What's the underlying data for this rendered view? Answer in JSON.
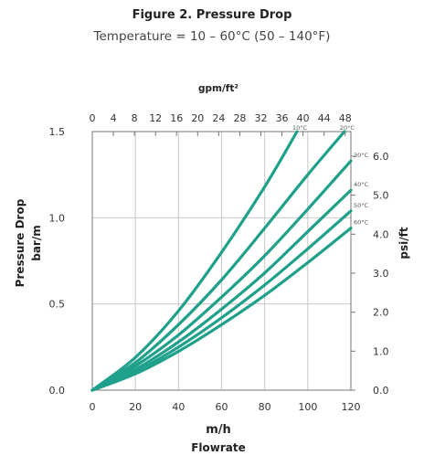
{
  "title": "Figure 2. Pressure Drop",
  "subtitle": "Temperature = 10 – 60°C (50 – 140°F)",
  "chart_data": {
    "type": "line",
    "xlabel": "m/h",
    "xlabel_secondary": "Flowrate",
    "x_top_label": "gpm/ft²",
    "ylabel": "Pressure Drop",
    "ylabel_secondary": "bar/m",
    "y_right_label": "psi/ft",
    "xlim": [
      0,
      120
    ],
    "ylim": [
      0,
      1.5
    ],
    "x_ticks": [
      "0",
      "20",
      "40",
      "60",
      "80",
      "100",
      "120"
    ],
    "x_top_ticks": [
      "0",
      "4",
      "8",
      "12",
      "16",
      "20",
      "24",
      "28",
      "32",
      "36",
      "40",
      "44",
      "48"
    ],
    "y_ticks": [
      "0.0",
      "0.5",
      "1.0",
      "1.5"
    ],
    "y_right_ticks": [
      "0.0",
      "1.0",
      "2.0",
      "3.0",
      "4.0",
      "5.0",
      "6.0"
    ],
    "grid": true,
    "line_color": "#1fa08a",
    "series": [
      {
        "name": "10°C",
        "x": [
          0,
          20,
          40,
          60,
          80,
          95
        ],
        "y": [
          0,
          0.19,
          0.46,
          0.8,
          1.18,
          1.5
        ]
      },
      {
        "name": "20°C",
        "x": [
          0,
          20,
          40,
          60,
          80,
          100,
          117
        ],
        "y": [
          0,
          0.16,
          0.38,
          0.64,
          0.94,
          1.25,
          1.5
        ]
      },
      {
        "name": "30°C",
        "x": [
          0,
          20,
          40,
          60,
          80,
          100,
          120
        ],
        "y": [
          0,
          0.14,
          0.32,
          0.54,
          0.78,
          1.05,
          1.33
        ]
      },
      {
        "name": "40°C",
        "x": [
          0,
          20,
          40,
          60,
          80,
          100,
          120
        ],
        "y": [
          0,
          0.12,
          0.28,
          0.47,
          0.68,
          0.92,
          1.16
        ]
      },
      {
        "name": "50°C",
        "x": [
          0,
          20,
          40,
          60,
          80,
          100,
          120
        ],
        "y": [
          0,
          0.105,
          0.25,
          0.42,
          0.61,
          0.82,
          1.04
        ]
      },
      {
        "name": "60°C",
        "x": [
          0,
          20,
          40,
          60,
          80,
          100,
          120
        ],
        "y": [
          0,
          0.095,
          0.225,
          0.38,
          0.55,
          0.74,
          0.94
        ]
      }
    ]
  }
}
